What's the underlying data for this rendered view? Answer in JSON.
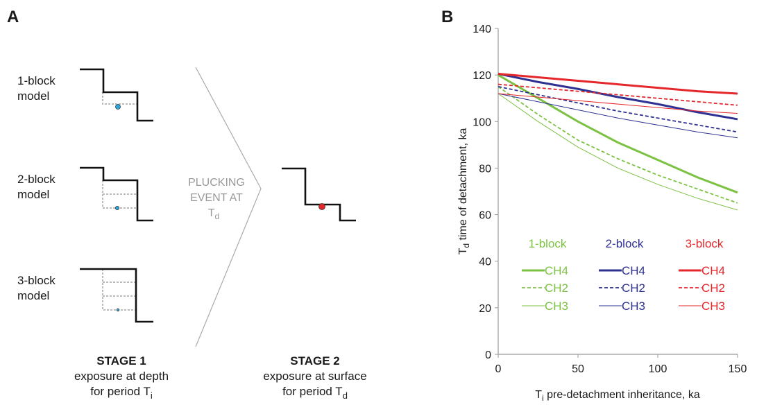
{
  "panel_a": {
    "label": "A",
    "models": [
      [
        "1-block",
        "model"
      ],
      [
        "2-block",
        "model"
      ],
      [
        "3-block",
        "model"
      ]
    ],
    "event": [
      "PLUCKING",
      "EVENT AT",
      "T",
      "d"
    ],
    "stage1": {
      "title": "STAGE 1",
      "line1": "exposure at depth",
      "line2": [
        "for period T",
        "i"
      ]
    },
    "stage2": {
      "title": "STAGE 2",
      "line1": "exposure at surface",
      "line2": [
        "for period T",
        "d"
      ]
    }
  },
  "chart_data": {
    "type": "line",
    "panel_label": "B",
    "x_label": [
      "T",
      "i",
      " pre-detachment inheritance, ka"
    ],
    "y_label": [
      "T",
      "d",
      " time of detachment, ka"
    ],
    "x": [
      0,
      25,
      50,
      75,
      100,
      125,
      150
    ],
    "xlim": [
      0,
      150
    ],
    "xticks": [
      0,
      50,
      100,
      150
    ],
    "ylim": [
      0,
      140
    ],
    "yticks": [
      0,
      20,
      40,
      60,
      80,
      100,
      120,
      140
    ],
    "groups": [
      {
        "name": "1-block",
        "color": "#7cc242",
        "series": [
          {
            "name": "CH4",
            "style": "thick",
            "values": [
              120,
              110,
              100,
              91,
              83.5,
              76,
              69.5
            ]
          },
          {
            "name": "CH2",
            "style": "dashed",
            "values": [
              115,
              103,
              92,
              84,
              77,
              71,
              65
            ]
          },
          {
            "name": "CH3",
            "style": "thin",
            "values": [
              112,
              100,
              89,
              80,
              73,
              67,
              62
            ]
          }
        ]
      },
      {
        "name": "2-block",
        "color": "#2e3192",
        "series": [
          {
            "name": "CH4",
            "style": "thick",
            "values": [
              120.5,
              117,
              114,
              110.5,
              107.5,
              104,
              101
            ]
          },
          {
            "name": "CH2",
            "style": "dashed",
            "values": [
              115,
              111.5,
              108,
              104.5,
              101.5,
              98.5,
              95.5
            ]
          },
          {
            "name": "CH3",
            "style": "thin",
            "values": [
              112,
              108.5,
              105,
              101.5,
              98.5,
              95.5,
              93
            ]
          }
        ]
      },
      {
        "name": "3-block",
        "color": "#e5262a",
        "series": [
          {
            "name": "CH4",
            "style": "thick",
            "values": [
              120.5,
              119,
              117.5,
              116,
              114.5,
              113,
              112
            ]
          },
          {
            "name": "CH2",
            "style": "dashed",
            "values": [
              116,
              114.5,
              113,
              111.5,
              110,
              108.5,
              107
            ]
          },
          {
            "name": "CH3",
            "style": "thin",
            "values": [
              112,
              110.5,
              109,
              107.5,
              106,
              104.5,
              103.5
            ]
          }
        ]
      }
    ]
  }
}
